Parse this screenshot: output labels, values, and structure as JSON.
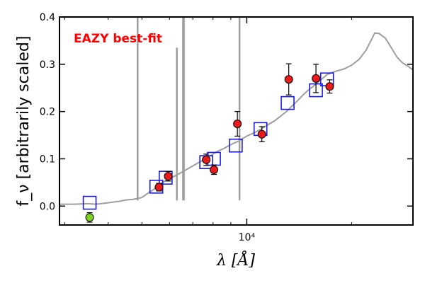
{
  "chart_data": {
    "type": "scatter",
    "title": "",
    "annotation": "EAZY best-fit",
    "xlabel": "λ [Å]",
    "ylabel": "f_ν [arbitrarily scaled]",
    "xscale": "log",
    "xlim": [
      2900,
      30000
    ],
    "ylim": [
      -0.04,
      0.4
    ],
    "x_ticks": [
      {
        "value": 10000,
        "label": "10⁴"
      }
    ],
    "y_ticks": [
      {
        "value": 0.0,
        "label": "0.0"
      },
      {
        "value": 0.1,
        "label": "0.1"
      },
      {
        "value": 0.2,
        "label": "0.2"
      },
      {
        "value": 0.3,
        "label": "0.3"
      },
      {
        "value": 0.4,
        "label": "0.4"
      }
    ],
    "grid": false,
    "colors": {
      "template": "#9e9e9e",
      "model_box": "#1a1ae0",
      "observed": "#e81a1a",
      "upper_point": "#7ed321",
      "annotation": "#ff0000"
    },
    "series": [
      {
        "kind": "line",
        "points": [
          [
            2900,
            0.004
          ],
          [
            3200,
            0.004
          ],
          [
            3500,
            0.005
          ],
          [
            3700,
            0.004
          ],
          [
            3900,
            0.006
          ],
          [
            4100,
            0.008
          ],
          [
            4300,
            0.01
          ],
          [
            4500,
            0.013
          ],
          [
            4700,
            0.014
          ],
          [
            4850,
            0.016
          ],
          [
            5000,
            0.018
          ],
          [
            5200,
            0.027
          ],
          [
            5400,
            0.035
          ],
          [
            5600,
            0.045
          ],
          [
            5800,
            0.052
          ],
          [
            6000,
            0.058
          ],
          [
            6300,
            0.066
          ],
          [
            6600,
            0.074
          ],
          [
            7000,
            0.085
          ],
          [
            7400,
            0.095
          ],
          [
            7800,
            0.105
          ],
          [
            8200,
            0.115
          ],
          [
            8600,
            0.122
          ],
          [
            9000,
            0.13
          ],
          [
            9500,
            0.138
          ],
          [
            10000,
            0.148
          ],
          [
            10500,
            0.155
          ],
          [
            11000,
            0.163
          ],
          [
            11500,
            0.172
          ],
          [
            12000,
            0.18
          ],
          [
            12500,
            0.19
          ],
          [
            13000,
            0.2
          ],
          [
            13500,
            0.212
          ],
          [
            14000,
            0.223
          ],
          [
            14500,
            0.235
          ],
          [
            15000,
            0.245
          ],
          [
            15500,
            0.253
          ],
          [
            16000,
            0.262
          ],
          [
            16500,
            0.27
          ],
          [
            17000,
            0.278
          ],
          [
            17500,
            0.282
          ],
          [
            18000,
            0.285
          ],
          [
            19000,
            0.29
          ],
          [
            20000,
            0.298
          ],
          [
            21000,
            0.31
          ],
          [
            22000,
            0.33
          ],
          [
            22800,
            0.352
          ],
          [
            23300,
            0.366
          ],
          [
            24000,
            0.365
          ],
          [
            25000,
            0.355
          ],
          [
            26000,
            0.335
          ],
          [
            27000,
            0.315
          ],
          [
            28000,
            0.303
          ],
          [
            29000,
            0.296
          ],
          [
            30000,
            0.288
          ]
        ],
        "spikes": [
          {
            "x": 4861,
            "y": 0.4
          },
          {
            "x": 6300,
            "y": 0.335
          },
          {
            "x": 6563,
            "y": 0.4
          },
          {
            "x": 6600,
            "y": 0.4
          },
          {
            "x": 9532,
            "y": 0.4
          }
        ]
      },
      {
        "kind": "box",
        "points": [
          [
            3540,
            0.007
          ],
          [
            5500,
            0.041
          ],
          [
            5850,
            0.06
          ],
          [
            7650,
            0.093
          ],
          [
            8050,
            0.1
          ],
          [
            9300,
            0.128
          ],
          [
            10950,
            0.163
          ],
          [
            13100,
            0.218
          ],
          [
            15800,
            0.245
          ],
          [
            17000,
            0.268
          ]
        ]
      },
      {
        "kind": "errorbar",
        "points": [
          {
            "x": 5600,
            "y": 0.04,
            "err": 0.008
          },
          {
            "x": 5950,
            "y": 0.063,
            "err": 0.01
          },
          {
            "x": 7650,
            "y": 0.098,
            "err": 0.012
          },
          {
            "x": 8050,
            "y": 0.077,
            "err": 0.01
          },
          {
            "x": 9400,
            "y": 0.174,
            "err": 0.026
          },
          {
            "x": 11050,
            "y": 0.152,
            "err": 0.016
          },
          {
            "x": 13200,
            "y": 0.268,
            "err": 0.033
          },
          {
            "x": 15800,
            "y": 0.27,
            "err": 0.03
          },
          {
            "x": 17300,
            "y": 0.253,
            "err": 0.014
          }
        ]
      },
      {
        "kind": "errorbar-lower",
        "points": [
          {
            "x": 3540,
            "y": -0.024,
            "err": 0.01
          }
        ]
      }
    ]
  }
}
